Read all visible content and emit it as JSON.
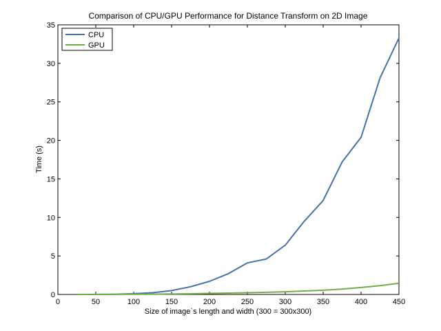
{
  "chart_data": {
    "type": "line",
    "title": "Comparison of CPU/GPU Performance for Distance Transform on 2D Image",
    "xlabel": "Size of image`s length and width (300 = 300x300)",
    "ylabel": "Time (s)",
    "xlim": [
      0,
      450
    ],
    "ylim": [
      0,
      35
    ],
    "xticks": [
      0,
      50,
      100,
      150,
      200,
      250,
      300,
      350,
      400,
      450
    ],
    "yticks": [
      0,
      5,
      10,
      15,
      20,
      25,
      30,
      35
    ],
    "x": [
      25,
      50,
      75,
      100,
      125,
      150,
      175,
      200,
      225,
      250,
      275,
      300,
      325,
      350,
      375,
      400,
      425,
      450
    ],
    "series": [
      {
        "name": "CPU",
        "color": "#4572a7",
        "values": [
          0.0,
          0.01,
          0.03,
          0.1,
          0.22,
          0.5,
          1.0,
          1.7,
          2.7,
          4.1,
          4.6,
          6.4,
          9.5,
          12.2,
          17.2,
          20.4,
          28.1,
          33.3
        ]
      },
      {
        "name": "GPU",
        "color": "#70ad47",
        "values": [
          0.0,
          0.0,
          0.01,
          0.02,
          0.04,
          0.06,
          0.09,
          0.13,
          0.18,
          0.22,
          0.28,
          0.35,
          0.45,
          0.55,
          0.7,
          0.9,
          1.15,
          1.45
        ]
      }
    ],
    "legend_position": "top-left",
    "grid": false
  }
}
